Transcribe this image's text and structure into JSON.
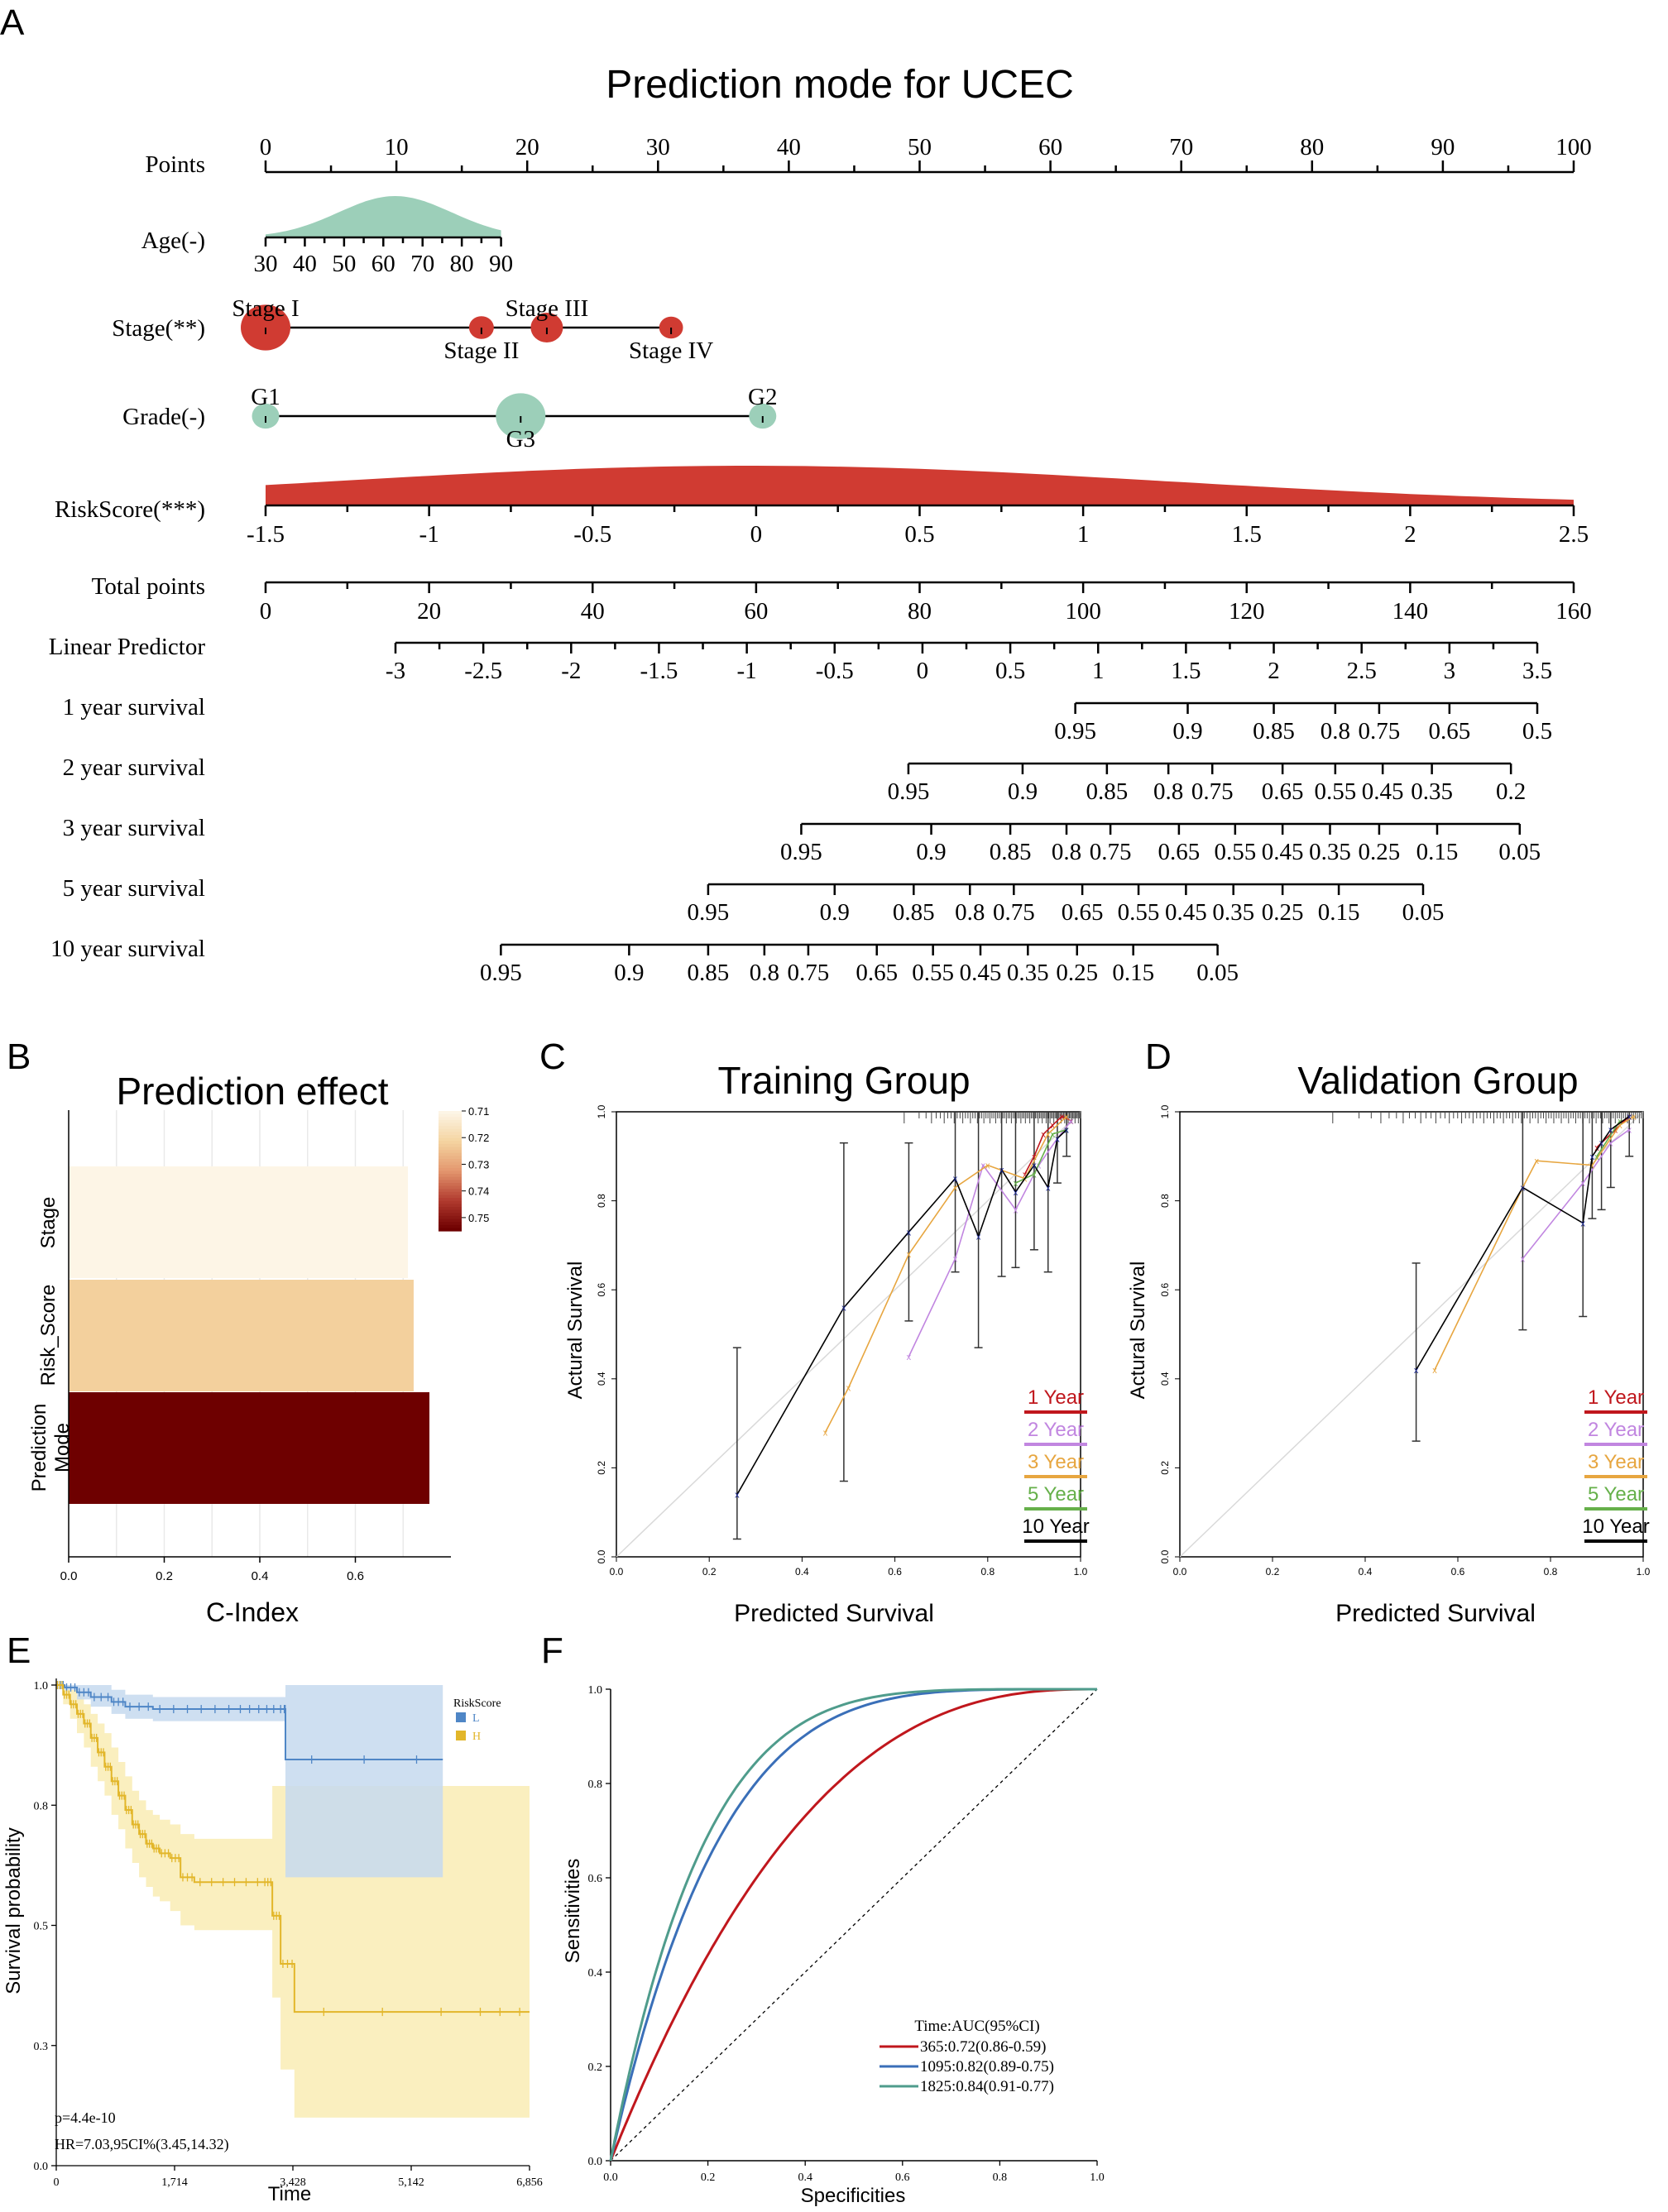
{
  "panels": {
    "A": "A",
    "B": "B",
    "C": "C",
    "D": "D",
    "E": "E",
    "F": "F"
  },
  "colors": {
    "green": "#9ccfb9",
    "red": "#d03b32",
    "black": "#000000",
    "km_low": "#4f86c6",
    "km_high": "#e2b62a",
    "km_low_band": "#c5d9ef",
    "km_high_band": "#f9ecb4",
    "roc_365": "#c0171d",
    "roc_1095": "#3a6fb8",
    "roc_1825": "#4f9c8c",
    "cal_1y": "#c0171d",
    "cal_2y": "#c186e0",
    "cal_3y": "#e7a640",
    "cal_5y": "#66b04a",
    "cal_10y": "#000000"
  },
  "chart_data": [
    {
      "id": "A",
      "type": "nomogram",
      "title": "Prediction mode for UCEC",
      "rows": [
        {
          "label": "Points",
          "axis": {
            "min": 0,
            "max": 100,
            "ticks": [
              "0",
              "10",
              "20",
              "30",
              "40",
              "50",
              "60",
              "70",
              "80",
              "90",
              "100"
            ],
            "tick_values": [
              0,
              10,
              20,
              30,
              40,
              50,
              60,
              70,
              80,
              90,
              100
            ],
            "minor": 5
          }
        },
        {
          "label": "Age(-)",
          "density": "normal",
          "axis": {
            "pmin": 0,
            "pmax": 18,
            "ticks": [
              "30",
              "40",
              "50",
              "60",
              "70",
              "80",
              "90"
            ]
          }
        },
        {
          "label": "Stage(**)",
          "categories": [
            {
              "name": "Stage I",
              "points": 0,
              "size": 1.0,
              "label_pos": "above"
            },
            {
              "name": "Stage II",
              "points": 16.5,
              "size": 0.5,
              "label_pos": "below"
            },
            {
              "name": "Stage III",
              "points": 21.5,
              "size": 0.65,
              "label_pos": "above"
            },
            {
              "name": "Stage IV",
              "points": 31,
              "size": 0.48,
              "label_pos": "below"
            }
          ]
        },
        {
          "label": "Grade(-)",
          "categories": [
            {
              "name": "G1",
              "points": 0,
              "size": 0.55,
              "label_pos": "above"
            },
            {
              "name": "G3",
              "points": 19.5,
              "size": 1.0,
              "label_pos": "below"
            },
            {
              "name": "G2",
              "points": 38,
              "size": 0.55,
              "label_pos": "above"
            }
          ]
        },
        {
          "label": "RiskScore(***)",
          "density": "normal",
          "axis": {
            "pmin": 0,
            "pmax": 100,
            "ticks": [
              "-1.5",
              "-1",
              "-0.5",
              "0",
              "0.5",
              "1",
              "1.5",
              "2",
              "2.5"
            ]
          }
        },
        {
          "label": "Total points",
          "axis": {
            "min": 0,
            "max": 160,
            "ticks": [
              "0",
              "20",
              "40",
              "60",
              "80",
              "100",
              "120",
              "140",
              "160"
            ],
            "tick_values": [
              0,
              20,
              40,
              60,
              80,
              100,
              120,
              140,
              160
            ]
          }
        },
        {
          "label": "Linear Predictor",
          "axis": {
            "min": -3,
            "max": 3.5,
            "ticks": [
              "-3",
              "-2.5",
              "-2",
              "-1.5",
              "-1",
              "-0.5",
              "0",
              "0.5",
              "1",
              "1.5",
              "2",
              "2.5",
              "3",
              "3.5"
            ]
          }
        },
        {
          "label": "1 year survival",
          "ticks": [
            "0.95",
            "0.9",
            "0.85",
            "0.8",
            "0.75",
            "0.65",
            "0.5"
          ],
          "lp": [
            0.87,
            1.51,
            2.0,
            2.35,
            2.6,
            3.0,
            3.5
          ]
        },
        {
          "label": "2 year survival",
          "ticks": [
            "0.95",
            "0.9",
            "0.85",
            "0.8",
            "0.75",
            "0.65",
            "0.55",
            "0.45",
            "0.35",
            "0.2"
          ],
          "lp": [
            -0.08,
            0.57,
            1.05,
            1.4,
            1.65,
            2.05,
            2.35,
            2.62,
            2.9,
            3.35
          ]
        },
        {
          "label": "3 year survival",
          "ticks": [
            "0.95",
            "0.9",
            "0.85",
            "0.8",
            "0.75",
            "0.65",
            "0.55",
            "0.45",
            "0.35",
            "0.25",
            "0.15",
            "0.05"
          ],
          "lp": [
            -0.69,
            0.05,
            0.5,
            0.82,
            1.07,
            1.46,
            1.78,
            2.05,
            2.32,
            2.6,
            2.93,
            3.4
          ]
        },
        {
          "label": "5 year survival",
          "ticks": [
            "0.95",
            "0.9",
            "0.85",
            "0.8",
            "0.75",
            "0.65",
            "0.55",
            "0.45",
            "0.35",
            "0.25",
            "0.15",
            "0.05"
          ],
          "lp": [
            -1.22,
            -0.5,
            -0.05,
            0.27,
            0.52,
            0.91,
            1.23,
            1.5,
            1.77,
            2.05,
            2.37,
            2.85
          ]
        },
        {
          "label": "10 year survival",
          "ticks": [
            "0.95",
            "0.9",
            "0.85",
            "0.8",
            "0.75",
            "0.65",
            "0.55",
            "0.45",
            "0.35",
            "0.25",
            "0.15",
            "0.05"
          ],
          "lp": [
            -2.4,
            -1.67,
            -1.22,
            -0.9,
            -0.65,
            -0.26,
            0.06,
            0.33,
            0.6,
            0.88,
            1.2,
            1.68
          ]
        }
      ]
    },
    {
      "id": "B",
      "type": "bar",
      "orientation": "horizontal",
      "title": "Prediction effect",
      "xlabel": "C-Index",
      "categories": [
        "Stage",
        "Risk_Score",
        "Prediction Mode"
      ],
      "values": [
        0.71,
        0.722,
        0.755
      ],
      "xlim": [
        0,
        0.8
      ],
      "xticks": [
        "0.0",
        "0.2",
        "0.4",
        "0.6"
      ],
      "legend": {
        "ticks": [
          "0.71",
          "0.72",
          "0.73",
          "0.74",
          "0.75"
        ],
        "range": [
          0.71,
          0.755
        ]
      }
    },
    {
      "id": "C",
      "type": "line",
      "title": "Training Group",
      "xlabel": "Predicted Survival",
      "ylabel": "Actural Survival",
      "xlim": [
        0,
        1
      ],
      "ylim": [
        0,
        1
      ],
      "xticks": [
        "0.0",
        "0.2",
        "0.4",
        "0.6",
        "0.8",
        "1.0"
      ],
      "yticks": [
        "0.0",
        "0.2",
        "0.4",
        "0.6",
        "0.8",
        "1.0"
      ],
      "series": [
        {
          "name": "1 Year",
          "color": "#c0171d",
          "x": [
            0.88,
            0.9,
            0.92,
            0.94,
            0.96,
            0.98
          ],
          "y": [
            0.86,
            0.9,
            0.95,
            0.97,
            0.99,
            0.98
          ]
        },
        {
          "name": "2 Year",
          "color": "#c186e0",
          "x": [
            0.63,
            0.73,
            0.79,
            0.86,
            0.91,
            0.95,
            0.98
          ],
          "y": [
            0.45,
            0.67,
            0.88,
            0.78,
            0.88,
            0.94,
            0.98
          ]
        },
        {
          "name": "3 Year",
          "color": "#e7a640",
          "x": [
            0.45,
            0.5,
            0.63,
            0.73,
            0.8,
            0.88,
            0.93,
            0.97
          ],
          "y": [
            0.28,
            0.38,
            0.68,
            0.83,
            0.88,
            0.85,
            0.95,
            0.99
          ]
        },
        {
          "name": "5 Year",
          "color": "#66b04a",
          "x": [
            0.86,
            0.9,
            0.94,
            0.97
          ],
          "y": [
            0.84,
            0.86,
            0.95,
            0.96
          ]
        },
        {
          "name": "10 Year",
          "color": "#000000",
          "x": [
            0.26,
            0.49,
            0.63,
            0.73,
            0.78,
            0.83,
            0.86,
            0.9,
            0.93,
            0.95,
            0.97
          ],
          "y": [
            0.14,
            0.56,
            0.73,
            0.85,
            0.72,
            0.87,
            0.82,
            0.88,
            0.83,
            0.94,
            0.96
          ],
          "err_low": [
            0.04,
            0.17,
            0.53,
            0.64,
            0.47,
            0.63,
            0.65,
            0.69,
            0.64,
            0.84,
            0.9
          ],
          "err_high": [
            0.47,
            0.93,
            0.93,
            1.0,
            1.0,
            1.0,
            1.0,
            1.0,
            1.0,
            1.0,
            1.0
          ]
        }
      ]
    },
    {
      "id": "D",
      "type": "line",
      "title": "Validation Group",
      "xlabel": "Predicted Survival",
      "ylabel": "Actural Survival",
      "xlim": [
        0,
        1
      ],
      "ylim": [
        0,
        1
      ],
      "xticks": [
        "0.0",
        "0.2",
        "0.4",
        "0.6",
        "0.8",
        "1.0"
      ],
      "yticks": [
        "0.0",
        "0.2",
        "0.4",
        "0.6",
        "0.8",
        "1.0"
      ],
      "series": [
        {
          "name": "1 Year",
          "color": "#c0171d",
          "x": [
            0.9,
            0.94,
            0.97
          ],
          "y": [
            0.92,
            0.96,
            0.99
          ]
        },
        {
          "name": "2 Year",
          "color": "#c186e0",
          "x": [
            0.74,
            0.87,
            0.93,
            0.97
          ],
          "y": [
            0.67,
            0.84,
            0.93,
            0.96
          ]
        },
        {
          "name": "3 Year",
          "color": "#e7a640",
          "x": [
            0.55,
            0.74,
            0.77,
            0.89,
            0.95,
            0.98
          ],
          "y": [
            0.42,
            0.83,
            0.89,
            0.88,
            0.97,
            0.99
          ]
        },
        {
          "name": "5 Year",
          "color": "#66b04a",
          "x": [
            0.9,
            0.95
          ],
          "y": [
            0.9,
            0.98
          ]
        },
        {
          "name": "10 Year",
          "color": "#000000",
          "x": [
            0.51,
            0.74,
            0.87,
            0.89,
            0.91,
            0.93,
            0.97
          ],
          "y": [
            0.42,
            0.83,
            0.75,
            0.9,
            0.93,
            0.96,
            0.99
          ],
          "err_low": [
            0.26,
            0.51,
            0.54,
            0.76,
            0.78,
            0.83,
            0.9
          ],
          "err_high": [
            0.66,
            1.0,
            1.0,
            1.0,
            1.0,
            1.0,
            1.0
          ]
        }
      ]
    },
    {
      "id": "E",
      "type": "line",
      "subtype": "kaplan-meier",
      "xlabel": "Time",
      "ylabel": "Survival probability",
      "xlim": [
        0,
        6856
      ],
      "ylim": [
        0,
        1
      ],
      "xticks": [
        "0",
        "1,714",
        "3,428",
        "5,142",
        "6,856"
      ],
      "xtick_values": [
        0,
        1714,
        3428,
        5142,
        6856
      ],
      "yticks": [
        "0.0",
        "0.3",
        "0.5",
        "0.8",
        "1.0"
      ],
      "ytick_values": [
        0.0,
        0.25,
        0.5,
        0.75,
        1.0
      ],
      "legend": {
        "title": "RiskScore",
        "entries": [
          "L",
          "H"
        ]
      },
      "annotations": [
        "p=4.4e-10",
        "HR=7.03,95CI%(3.45,14.32)"
      ],
      "series": [
        {
          "name": "L",
          "color": "#4f86c6",
          "x": [
            0,
            120,
            300,
            500,
            800,
            1000,
            1400,
            2000,
            2600,
            3000,
            3300,
            3320,
            5600
          ],
          "y": [
            1.0,
            0.995,
            0.985,
            0.975,
            0.965,
            0.955,
            0.95,
            0.95,
            0.95,
            0.95,
            0.95,
            0.845,
            0.845
          ],
          "band_low": [
            1.0,
            0.99,
            0.97,
            0.955,
            0.94,
            0.93,
            0.925,
            0.925,
            0.925,
            0.925,
            0.925,
            0.6,
            0.6
          ],
          "band_high": [
            1.0,
            1.0,
            1.0,
            1.0,
            0.99,
            0.98,
            0.975,
            0.975,
            0.975,
            0.975,
            0.975,
            1.0,
            1.0
          ]
        },
        {
          "name": "H",
          "color": "#e2b62a",
          "x": [
            0,
            100,
            200,
            300,
            400,
            500,
            600,
            700,
            800,
            900,
            1000,
            1100,
            1200,
            1300,
            1400,
            1500,
            1650,
            1800,
            2000,
            2500,
            3000,
            3130,
            3250,
            3450,
            6000,
            6856
          ],
          "y": [
            1.0,
            0.98,
            0.96,
            0.94,
            0.92,
            0.89,
            0.86,
            0.83,
            0.8,
            0.77,
            0.74,
            0.71,
            0.69,
            0.67,
            0.66,
            0.65,
            0.64,
            0.6,
            0.59,
            0.59,
            0.59,
            0.52,
            0.42,
            0.32,
            0.32,
            0.32
          ],
          "band_low": [
            1.0,
            0.96,
            0.93,
            0.9,
            0.87,
            0.83,
            0.8,
            0.77,
            0.73,
            0.7,
            0.66,
            0.63,
            0.6,
            0.58,
            0.56,
            0.55,
            0.53,
            0.5,
            0.49,
            0.49,
            0.49,
            0.35,
            0.2,
            0.1,
            0.1,
            0.1
          ],
          "band_high": [
            1.0,
            1.0,
            0.99,
            0.98,
            0.96,
            0.94,
            0.92,
            0.9,
            0.87,
            0.84,
            0.81,
            0.78,
            0.76,
            0.74,
            0.73,
            0.72,
            0.71,
            0.69,
            0.68,
            0.68,
            0.68,
            0.79,
            0.79,
            0.79,
            0.79,
            0.79
          ]
        }
      ]
    },
    {
      "id": "F",
      "type": "line",
      "subtype": "roc",
      "xlabel": "Specificities",
      "ylabel": "Sensitivities",
      "xlim": [
        0,
        1
      ],
      "ylim": [
        0,
        1
      ],
      "xticks": [
        "0.0",
        "0.2",
        "0.4",
        "0.6",
        "0.8",
        "1.0"
      ],
      "yticks": [
        "0.0",
        "0.2",
        "0.4",
        "0.6",
        "0.8",
        "1.0"
      ],
      "legend": {
        "title": "Time:AUC(95%CI)"
      },
      "series": [
        {
          "name": "365:0.72(0.86-0.59)",
          "color": "#c0171d",
          "auc": 0.72
        },
        {
          "name": "1095:0.82(0.89-0.75)",
          "color": "#3a6fb8",
          "auc": 0.82
        },
        {
          "name": "1825:0.84(0.91-0.77)",
          "color": "#4f9c8c",
          "auc": 0.84
        }
      ]
    }
  ]
}
